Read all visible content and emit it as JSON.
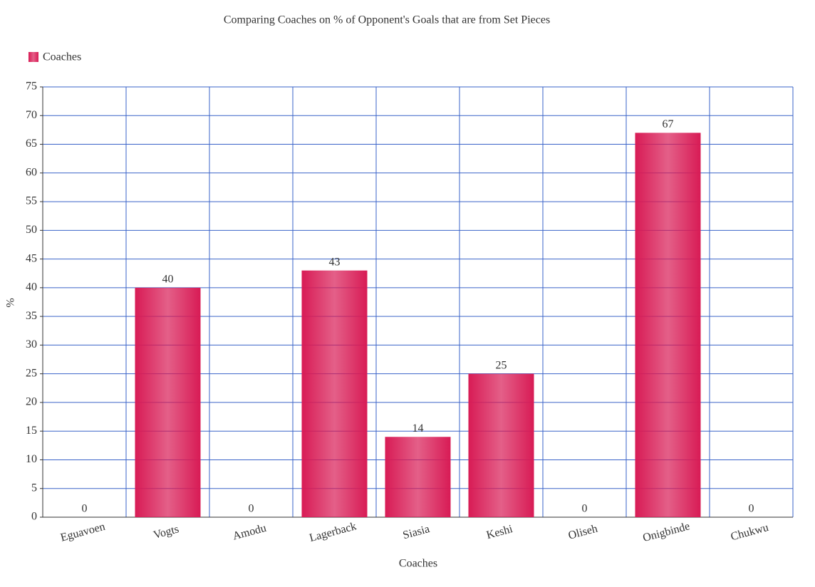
{
  "chart_data": {
    "type": "bar",
    "title": "Comparing Coaches on % of Opponent's Goals that are from Set Pieces",
    "x_label": "Coaches",
    "y_label": "%",
    "categories": [
      "Eguavoen",
      "Vogts",
      "Amodu",
      "Lagerback",
      "Siasia",
      "Keshi",
      "Oliseh",
      "Onigbinde",
      "Chukwu"
    ],
    "series": [
      {
        "name": "Coaches",
        "color": "#d81b55",
        "values": [
          0,
          40,
          0,
          43,
          14,
          25,
          0,
          67,
          0
        ]
      }
    ],
    "ylim": [
      0,
      75
    ],
    "yticks": [
      0,
      5,
      10,
      15,
      20,
      25,
      30,
      35,
      40,
      45,
      50,
      55,
      60,
      65,
      70,
      75
    ],
    "grid": true,
    "legend": "top-left"
  }
}
